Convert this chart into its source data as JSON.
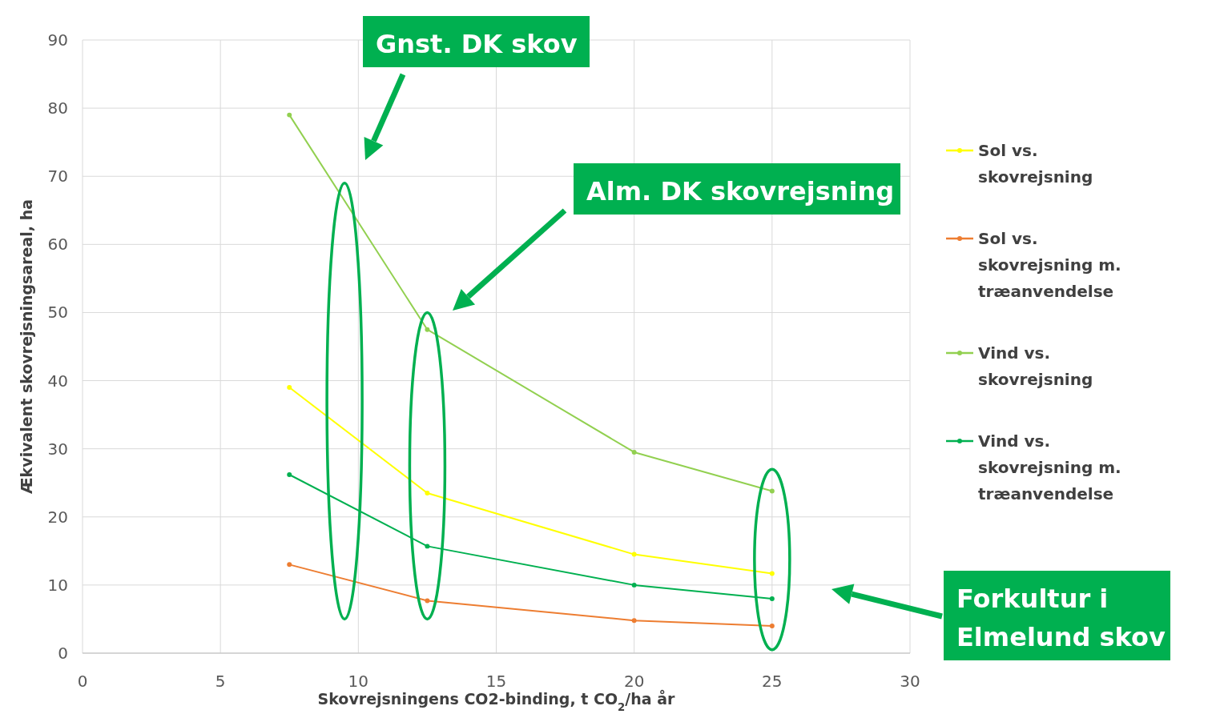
{
  "chart_data": {
    "type": "line",
    "xlabel": "Skovrejsningens CO2-binding, t CO$_{2}$/ha år",
    "ylabel": "Ækvivalent skovrejsningsareal, ha",
    "x": [
      7.5,
      12.5,
      20,
      25
    ],
    "xlim": [
      0,
      30
    ],
    "xticks": [
      0,
      5,
      10,
      15,
      20,
      25,
      30
    ],
    "ylim": [
      0,
      90
    ],
    "yticks": [
      0,
      10,
      20,
      30,
      40,
      50,
      60,
      70,
      80,
      90
    ],
    "grid": true,
    "legend": "right",
    "marker": "circle",
    "line_style": "solid",
    "series": [
      {
        "name": "Sol vs. skovrejsning",
        "color": "#ffff00",
        "values": [
          39,
          23.5,
          14.5,
          11.7
        ]
      },
      {
        "name": "Sol vs. skovrejsning m. træanvendelse",
        "color": "#ed7d31",
        "values": [
          13,
          7.7,
          4.8,
          4
        ]
      },
      {
        "name": "Vind vs. skovrejsning",
        "color": "#92d050",
        "values": [
          79,
          47.5,
          29.5,
          23.8
        ]
      },
      {
        "name": "Vind vs. skovrejsning m. træanvendelse",
        "color": "#00b050",
        "values": [
          26.2,
          15.7,
          10,
          8
        ]
      }
    ],
    "annotations": [
      "Gnst. DK skov",
      "Alm. DK skovrejsning",
      "Forkultur i Elmelund skov"
    ]
  }
}
